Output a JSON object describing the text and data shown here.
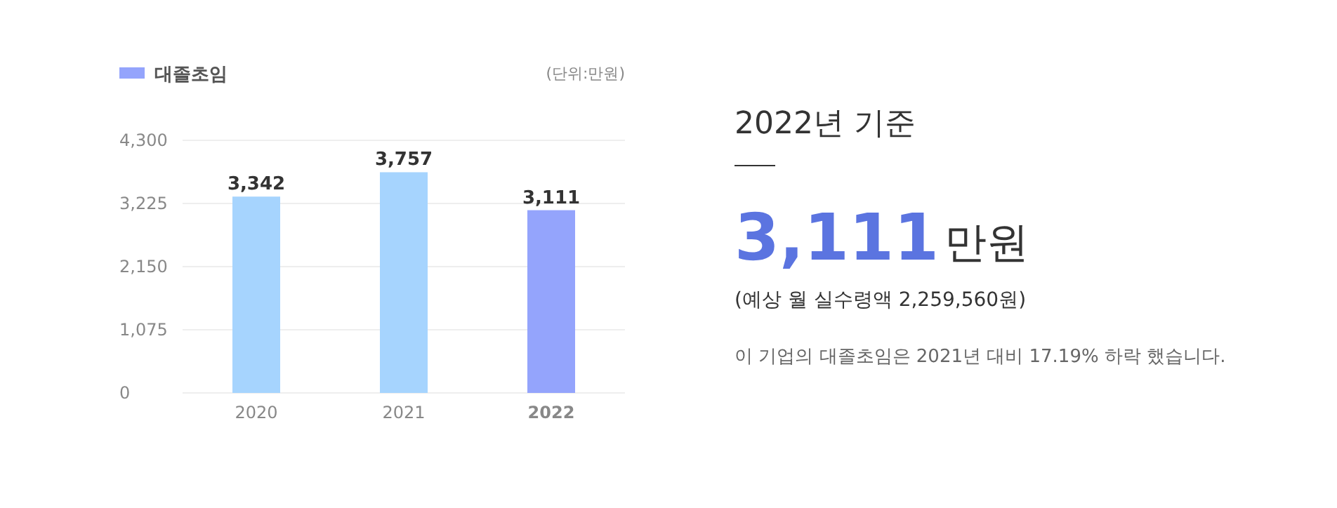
{
  "chart_data": [
    {
      "type": "bar",
      "categories": [
        "2020",
        "2021",
        "2022"
      ],
      "series": [
        {
          "name": "대졸초임",
          "color": "#94a4fc",
          "colors": [
            "#a6d4fe",
            "#a6d4fe",
            "#94a4fc"
          ],
          "values": [
            3342,
            3757,
            3111
          ],
          "value_labels": [
            "3,342",
            "3,757",
            "3,111"
          ]
        }
      ],
      "ylim": [
        0,
        4300
      ],
      "yticks": [
        0,
        {
          "value": 1075,
          "label": "1,075"
        },
        {
          "value": 2150,
          "label": "2,150"
        },
        {
          "value": 3225,
          "label": "3,225"
        },
        {
          "value": 4300,
          "label": "4,300"
        }
      ],
      "grid": "y",
      "legend": "top left",
      "annotations": [
        "(단위:만원)"
      ]
    },
    {
      "type": "other",
      "title": "2022년 기준",
      "annotations": [
        "3,111",
        "만원",
        "(예상 월 실수령액 2,259,560원)",
        "이 기업의 대졸초임은 2021년 대비 17.19% 하락 했습니다."
      ]
    }
  ]
}
